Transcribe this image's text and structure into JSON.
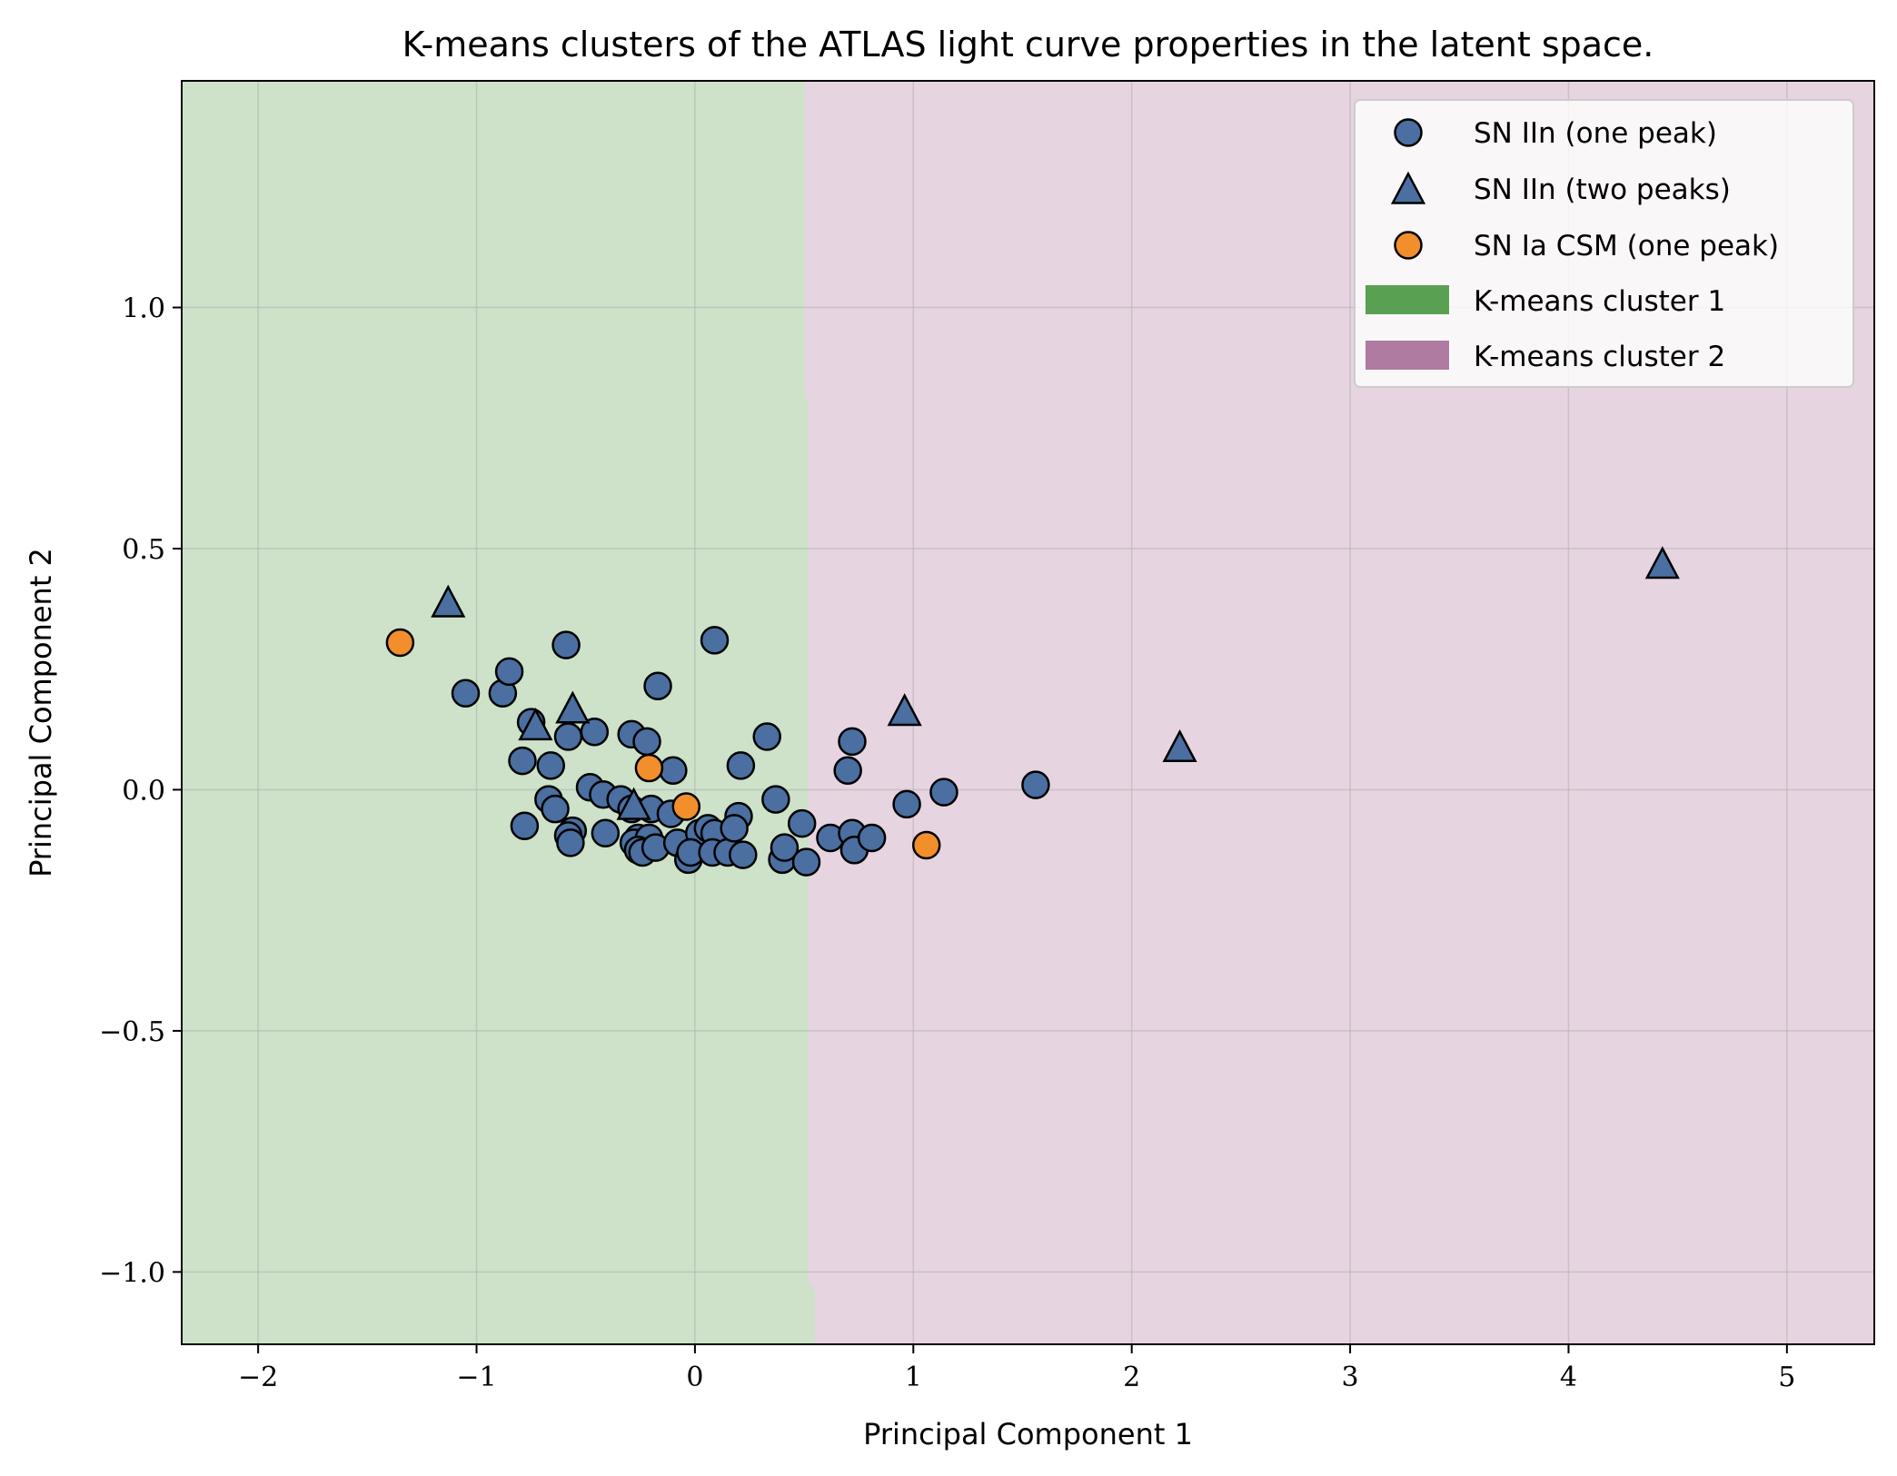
{
  "chart_data": {
    "type": "scatter",
    "title": "K-means clusters of the ATLAS light curve properties in the latent space.",
    "xlabel": "Principal Component 1",
    "ylabel": "Principal Component 2",
    "xlim": [
      -2.35,
      5.4
    ],
    "ylim": [
      -1.15,
      1.47
    ],
    "xticks": [
      -2,
      -1,
      0,
      1,
      2,
      3,
      4,
      5
    ],
    "xtick_labels": [
      "−2",
      "−1",
      "0",
      "1",
      "2",
      "3",
      "4",
      "5"
    ],
    "yticks": [
      -1.0,
      -0.5,
      0.0,
      0.5,
      1.0
    ],
    "ytick_labels": [
      "−1.0",
      "−0.5",
      "0.0",
      "0.5",
      "1.0"
    ],
    "grid": true,
    "legend_position": "top-right",
    "regions": [
      {
        "name": "K-means cluster 1",
        "color": "#cde2c9",
        "legend_color": "#5aa052",
        "x_range_upper_bound": 0.5
      },
      {
        "name": "K-means cluster 2",
        "color": "#e6d4e1",
        "legend_color": "#b07ba0",
        "x_range_lower_bound": 0.5
      }
    ],
    "series": [
      {
        "name": "SN IIn (one peak)",
        "marker": "circle",
        "color": "#4a6fa0",
        "points": [
          [
            -1.05,
            0.2
          ],
          [
            -0.88,
            0.2
          ],
          [
            -0.85,
            0.245
          ],
          [
            -0.59,
            0.3
          ],
          [
            0.09,
            0.31
          ],
          [
            -0.17,
            0.215
          ],
          [
            -0.75,
            0.14
          ],
          [
            -0.58,
            0.11
          ],
          [
            -0.46,
            0.12
          ],
          [
            -0.29,
            0.115
          ],
          [
            -0.22,
            0.1
          ],
          [
            0.33,
            0.11
          ],
          [
            0.72,
            0.1
          ],
          [
            -0.79,
            0.06
          ],
          [
            -0.66,
            0.05
          ],
          [
            -0.1,
            0.04
          ],
          [
            0.21,
            0.05
          ],
          [
            0.7,
            0.04
          ],
          [
            -0.48,
            0.005
          ],
          [
            -0.42,
            -0.01
          ],
          [
            -0.34,
            -0.02
          ],
          [
            -0.29,
            -0.04
          ],
          [
            -0.2,
            -0.04
          ],
          [
            -0.11,
            -0.05
          ],
          [
            0.2,
            -0.055
          ],
          [
            0.37,
            -0.02
          ],
          [
            0.97,
            -0.03
          ],
          [
            1.14,
            -0.005
          ],
          [
            1.56,
            0.01
          ],
          [
            -0.67,
            -0.02
          ],
          [
            -0.64,
            -0.04
          ],
          [
            -0.78,
            -0.075
          ],
          [
            -0.56,
            -0.085
          ],
          [
            -0.58,
            -0.095
          ],
          [
            -0.57,
            -0.11
          ],
          [
            -0.41,
            -0.09
          ],
          [
            -0.26,
            -0.1
          ],
          [
            -0.28,
            -0.11
          ],
          [
            -0.21,
            -0.1
          ],
          [
            -0.26,
            -0.125
          ],
          [
            -0.24,
            -0.13
          ],
          [
            -0.18,
            -0.12
          ],
          [
            -0.08,
            -0.11
          ],
          [
            0.02,
            -0.09
          ],
          [
            0.06,
            -0.08
          ],
          [
            0.09,
            -0.09
          ],
          [
            -0.03,
            -0.145
          ],
          [
            -0.02,
            -0.13
          ],
          [
            0.08,
            -0.13
          ],
          [
            0.15,
            -0.13
          ],
          [
            0.18,
            -0.08
          ],
          [
            0.22,
            -0.135
          ],
          [
            0.4,
            -0.145
          ],
          [
            0.41,
            -0.12
          ],
          [
            0.49,
            -0.07
          ],
          [
            0.51,
            -0.15
          ],
          [
            0.62,
            -0.1
          ],
          [
            0.72,
            -0.09
          ],
          [
            0.73,
            -0.125
          ],
          [
            0.81,
            -0.1
          ]
        ]
      },
      {
        "name": "SN IIn (two peaks)",
        "marker": "triangle",
        "color": "#4a6fa0",
        "points": [
          [
            -1.13,
            0.385
          ],
          [
            -0.56,
            0.165
          ],
          [
            -0.73,
            0.13
          ],
          [
            -0.28,
            -0.035
          ],
          [
            0.96,
            0.16
          ],
          [
            2.22,
            0.085
          ],
          [
            4.43,
            0.465
          ]
        ]
      },
      {
        "name": "SN Ia CSM (one peak)",
        "marker": "circle",
        "color": "#f28e2b",
        "points": [
          [
            -1.35,
            0.305
          ],
          [
            -0.21,
            0.045
          ],
          [
            -0.04,
            -0.035
          ],
          [
            1.06,
            -0.115
          ]
        ]
      }
    ]
  }
}
